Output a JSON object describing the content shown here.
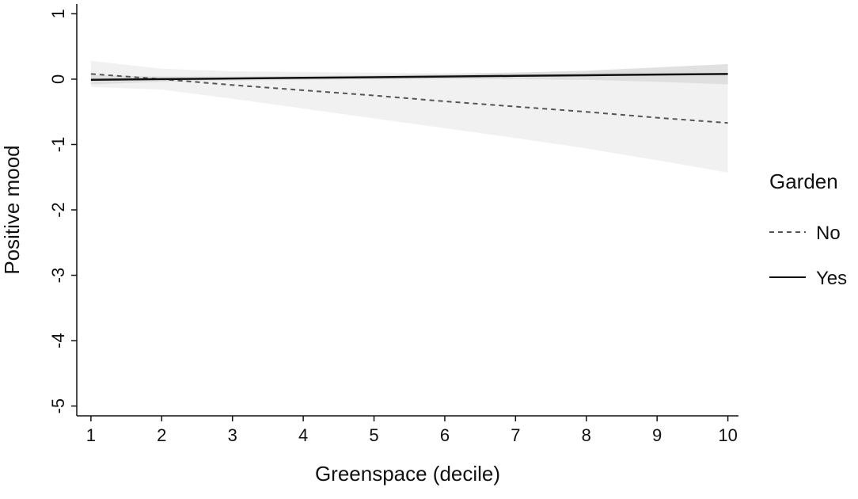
{
  "chart_data": {
    "type": "line",
    "x_label": "Greenspace (decile)",
    "y_label": "Positive mood",
    "x": [
      1,
      2,
      3,
      4,
      5,
      6,
      7,
      8,
      9,
      10
    ],
    "xlim": [
      0.8,
      10.15
    ],
    "xticks": [
      1,
      2,
      3,
      4,
      5,
      6,
      7,
      8,
      9,
      10
    ],
    "ylim": [
      -5.15,
      1.15
    ],
    "yticks": [
      1,
      0,
      -1,
      -2,
      -3,
      -4,
      -5
    ],
    "legend_title": "Garden",
    "legend_position": "right",
    "series": [
      {
        "name": "No",
        "color": "#555555",
        "dash": "dashed",
        "band_color": "#f1f1f1",
        "values": [
          0.08,
          0.0,
          -0.09,
          -0.17,
          -0.25,
          -0.34,
          -0.42,
          -0.5,
          -0.59,
          -0.67
        ],
        "ci_lower": [
          -0.12,
          -0.16,
          -0.3,
          -0.45,
          -0.6,
          -0.75,
          -0.9,
          -1.06,
          -1.24,
          -1.43
        ],
        "ci_upper": [
          0.28,
          0.16,
          0.12,
          0.11,
          0.1,
          0.09,
          0.1,
          0.11,
          0.13,
          0.15
        ]
      },
      {
        "name": "Yes",
        "color": "#111111",
        "dash": "solid",
        "band_color": "#dcdcdc",
        "values": [
          -0.01,
          0.0,
          0.01,
          0.02,
          0.03,
          0.04,
          0.05,
          0.06,
          0.07,
          0.08
        ],
        "ci_lower": [
          -0.08,
          -0.04,
          -0.02,
          -0.01,
          0.0,
          0.0,
          0.0,
          -0.01,
          -0.04,
          -0.08
        ],
        "ci_upper": [
          0.06,
          0.04,
          0.04,
          0.05,
          0.06,
          0.08,
          0.1,
          0.13,
          0.18,
          0.23
        ]
      }
    ]
  }
}
